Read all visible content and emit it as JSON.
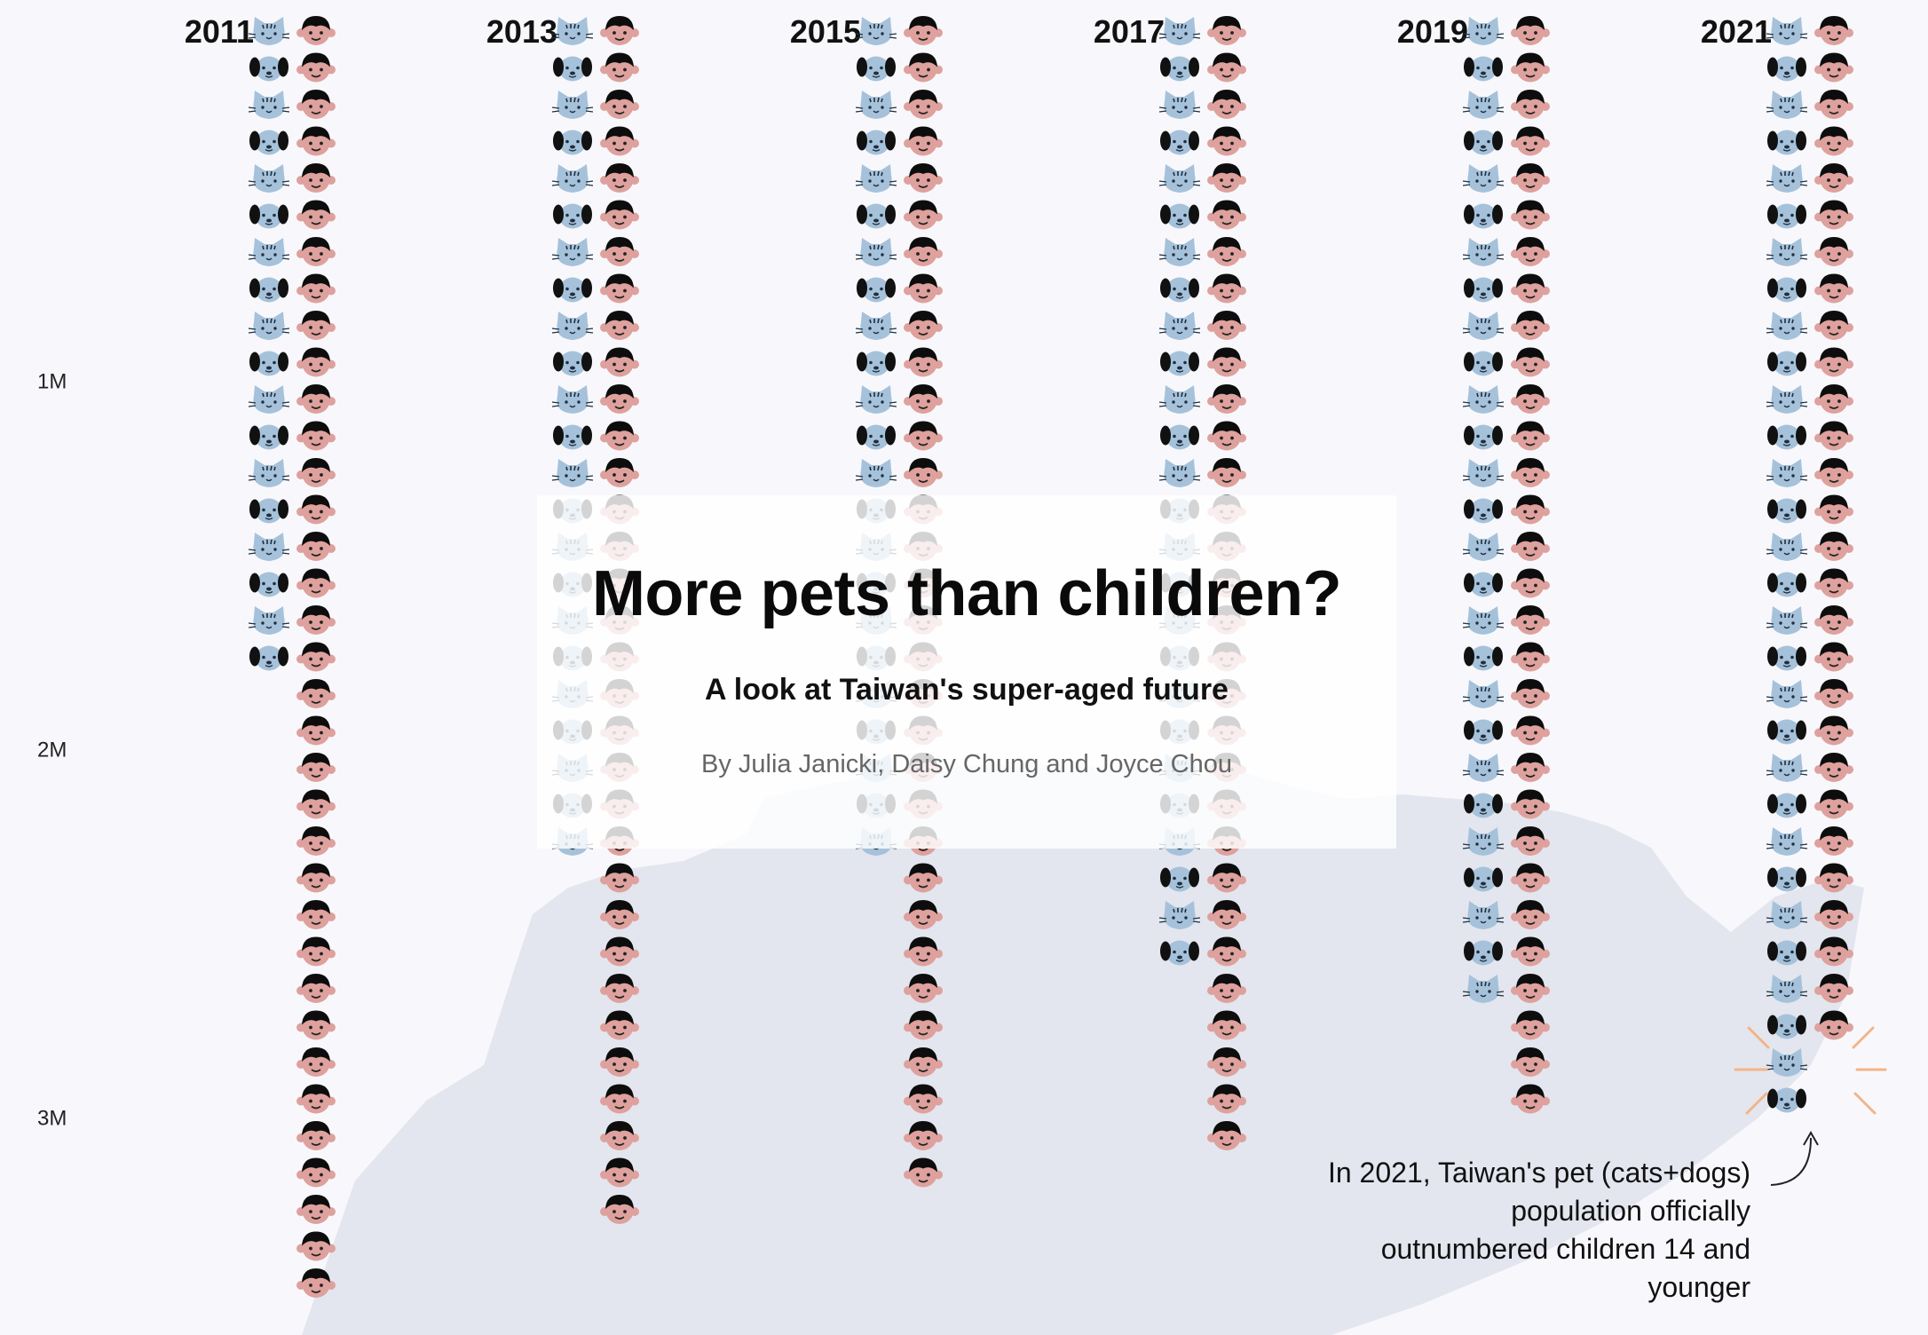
{
  "chart_data": {
    "type": "pictogram",
    "title": "More pets than children?",
    "subtitle": "A look at Taiwan's super-aged future",
    "byline": "By Julia Janicki, Daisy Chung and Joyce Chou",
    "y_ticks": [
      {
        "value": 1000000,
        "label": "1M"
      },
      {
        "value": 2000000,
        "label": "2M"
      },
      {
        "value": 3000000,
        "label": "3M"
      }
    ],
    "unit_per_icon": 100000,
    "categories": [
      "2011",
      "2013",
      "2015",
      "2017",
      "2019",
      "2021"
    ],
    "series": [
      {
        "icon": "pet-icon",
        "values": [
          1830000,
          2290000,
          2280000,
          2570000,
          2710000,
          2960000
        ]
      },
      {
        "icon": "child-icon",
        "values": [
          3480000,
          3290000,
          3200000,
          3090000,
          2980000,
          2750000
        ]
      }
    ],
    "colors": {
      "pet": "#a6c2da",
      "pet_dark": "#1f2f3f",
      "child_skin": "#dea19d",
      "child_hair": "#0d0d0d",
      "land": "#e3e6ee",
      "background": "#f8f8fc",
      "highlight": "#f3b488"
    },
    "annotation": {
      "lines": [
        "In 2021, Taiwan's pet (cats+dogs)",
        "population officially",
        "outnumbered children 14 and",
        "younger"
      ]
    }
  }
}
